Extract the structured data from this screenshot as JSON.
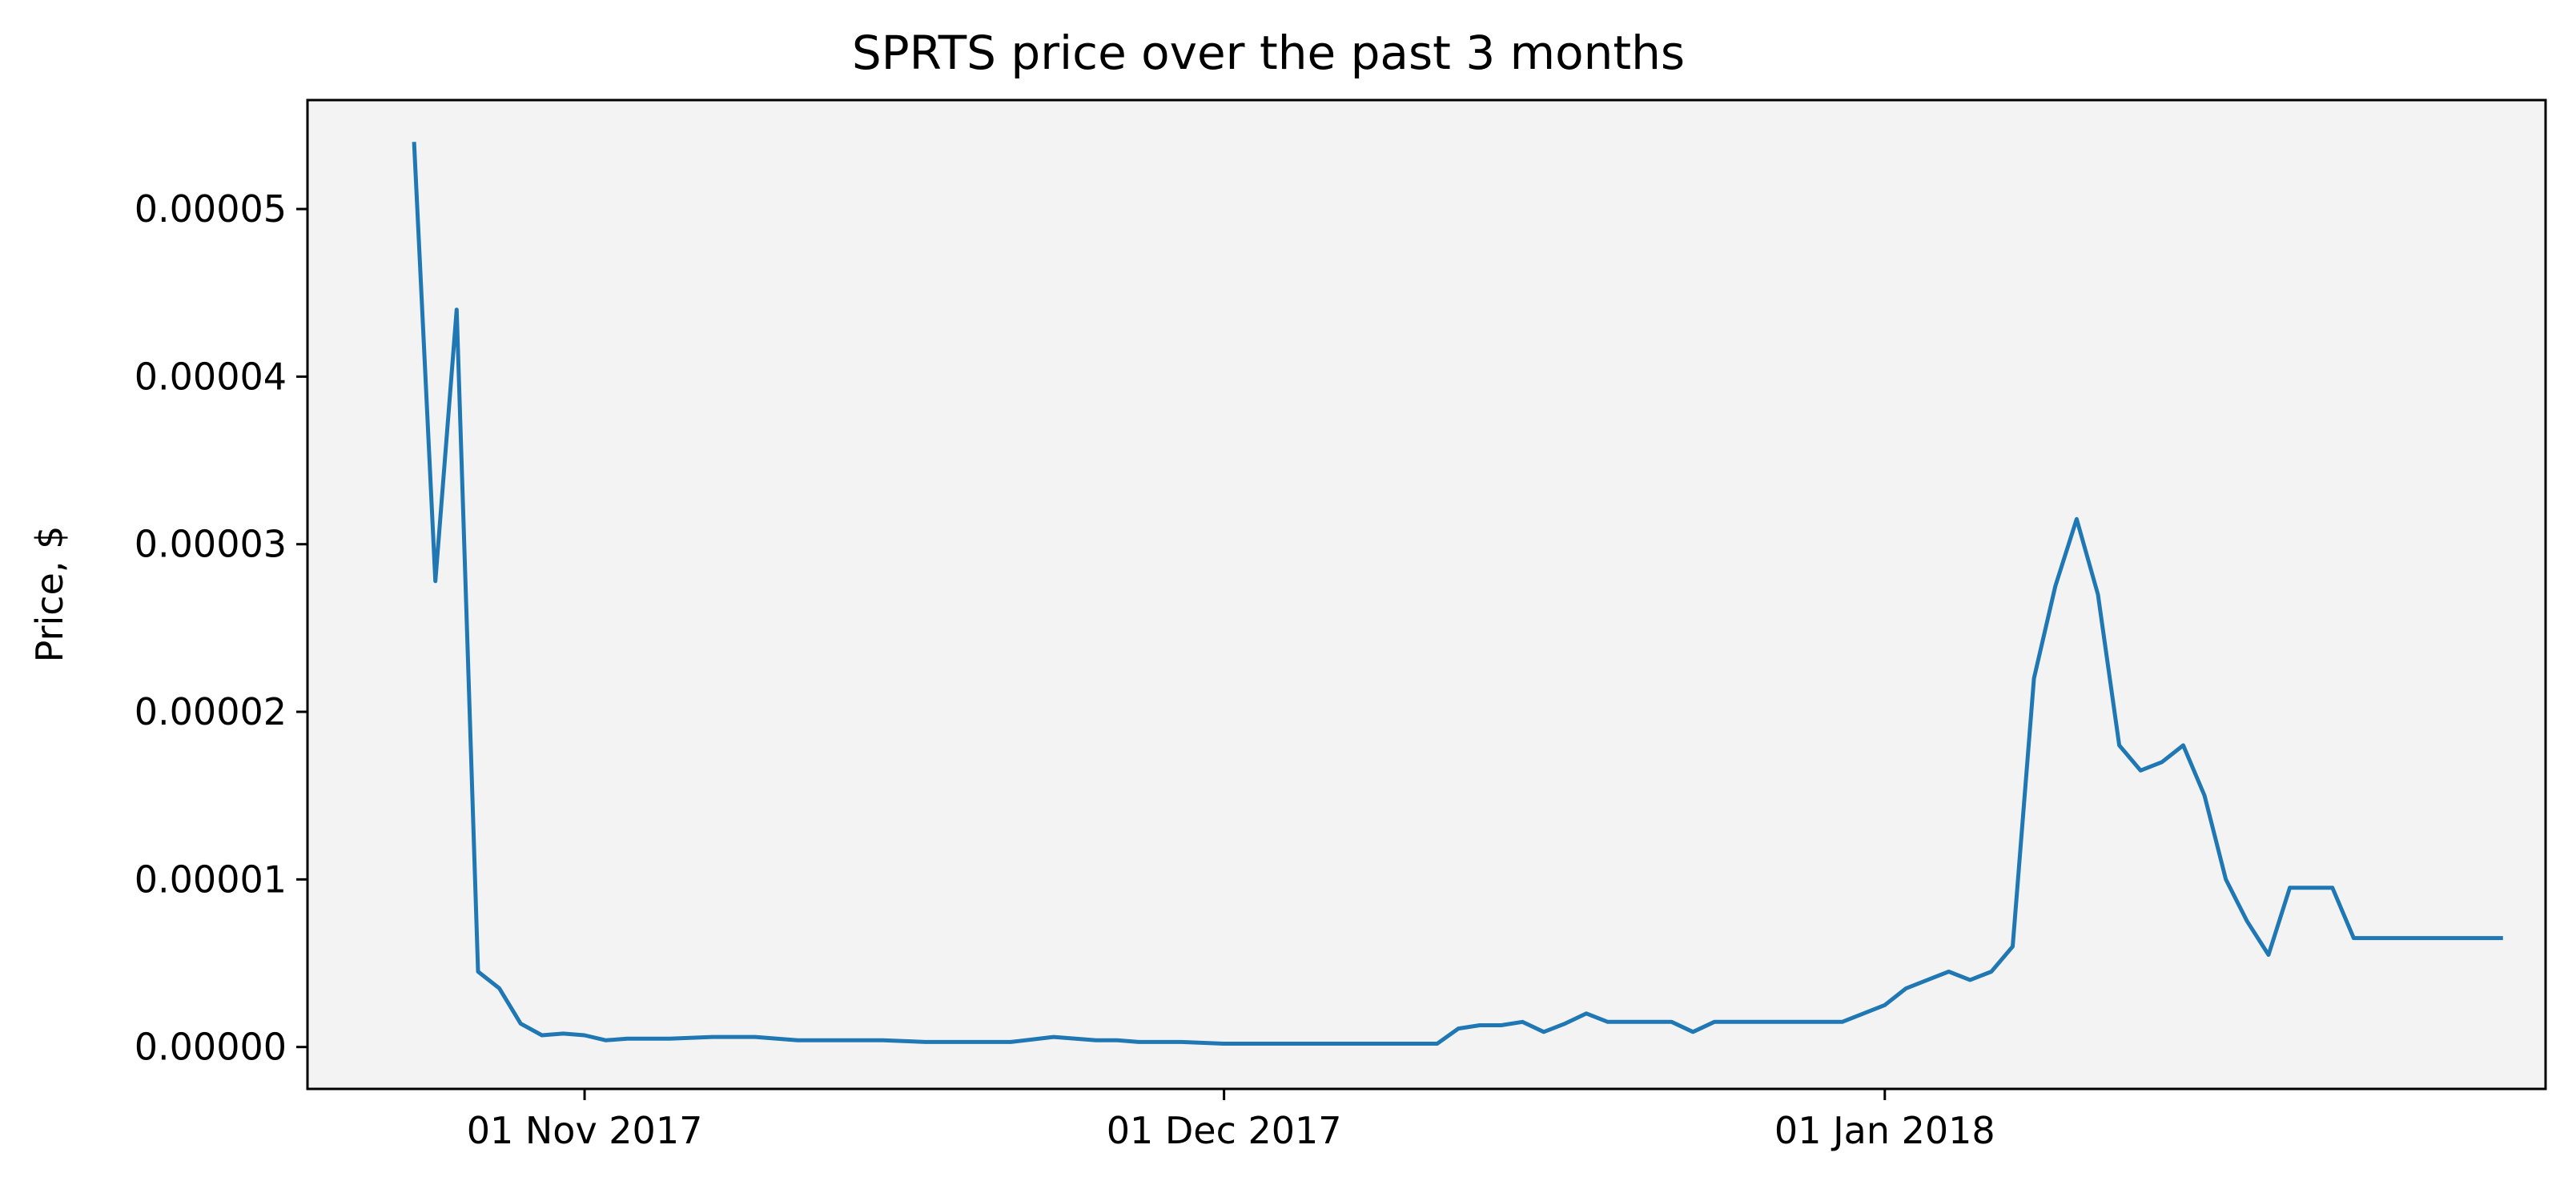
{
  "chart_data": {
    "type": "line",
    "title": "SPRTS price over the past 3 months",
    "xlabel": "",
    "ylabel": "Price, $",
    "grid": false,
    "legend": "none",
    "colors": {
      "background": "#f3f3f3",
      "line": "#1f77b4",
      "axes": "#000000"
    },
    "xlim": [
      "2017-10-19",
      "2018-02-01"
    ],
    "ylim": [
      -2.5e-06,
      5.65e-05
    ],
    "x_ticks": [
      {
        "date": "2017-11-01",
        "label": "01 Nov 2017"
      },
      {
        "date": "2017-12-01",
        "label": "01 Dec 2017"
      },
      {
        "date": "2018-01-01",
        "label": "01 Jan 2018"
      }
    ],
    "y_ticks": [
      {
        "value": 0.0,
        "label": "0.00000"
      },
      {
        "value": 1e-05,
        "label": "0.00001"
      },
      {
        "value": 2e-05,
        "label": "0.00002"
      },
      {
        "value": 3e-05,
        "label": "0.00003"
      },
      {
        "value": 4e-05,
        "label": "0.00004"
      },
      {
        "value": 5e-05,
        "label": "0.00005"
      }
    ],
    "series": [
      {
        "x": [
          "2017-10-24",
          "2017-10-25",
          "2017-10-26",
          "2017-10-27",
          "2017-10-28",
          "2017-10-29",
          "2017-10-30",
          "2017-10-31",
          "2017-11-01",
          "2017-11-02",
          "2017-11-03",
          "2017-11-05",
          "2017-11-07",
          "2017-11-09",
          "2017-11-11",
          "2017-11-13",
          "2017-11-15",
          "2017-11-17",
          "2017-11-19",
          "2017-11-21",
          "2017-11-23",
          "2017-11-25",
          "2017-11-26",
          "2017-11-27",
          "2017-11-29",
          "2017-12-01",
          "2017-12-03",
          "2017-12-05",
          "2017-12-07",
          "2017-12-09",
          "2017-12-11",
          "2017-12-12",
          "2017-12-13",
          "2017-12-14",
          "2017-12-15",
          "2017-12-16",
          "2017-12-17",
          "2017-12-18",
          "2017-12-19",
          "2017-12-20",
          "2017-12-21",
          "2017-12-22",
          "2017-12-23",
          "2017-12-24",
          "2017-12-25",
          "2017-12-26",
          "2017-12-27",
          "2017-12-28",
          "2017-12-29",
          "2017-12-30",
          "2017-12-31",
          "2018-01-01",
          "2018-01-02",
          "2018-01-03",
          "2018-01-04",
          "2018-01-05",
          "2018-01-06",
          "2018-01-07",
          "2018-01-08",
          "2018-01-09",
          "2018-01-10",
          "2018-01-11",
          "2018-01-12",
          "2018-01-13",
          "2018-01-14",
          "2018-01-15",
          "2018-01-16",
          "2018-01-17",
          "2018-01-18",
          "2018-01-19",
          "2018-01-20",
          "2018-01-21",
          "2018-01-22",
          "2018-01-23",
          "2018-01-24",
          "2018-01-25",
          "2018-01-26",
          "2018-01-27",
          "2018-01-28",
          "2018-01-29",
          "2018-01-30"
        ],
        "y": [
          5.4e-05,
          2.78e-05,
          4.4e-05,
          4.5e-06,
          3.5e-06,
          1.4e-06,
          7e-07,
          8e-07,
          7e-07,
          4e-07,
          5e-07,
          5e-07,
          6e-07,
          6e-07,
          4e-07,
          4e-07,
          4e-07,
          3e-07,
          3e-07,
          3e-07,
          6e-07,
          4e-07,
          4e-07,
          3e-07,
          3e-07,
          2e-07,
          2e-07,
          2e-07,
          2e-07,
          2e-07,
          2e-07,
          1.1e-06,
          1.3e-06,
          1.3e-06,
          1.5e-06,
          9e-07,
          1.4e-06,
          2e-06,
          1.5e-06,
          1.5e-06,
          1.5e-06,
          1.5e-06,
          9e-07,
          1.5e-06,
          1.5e-06,
          1.5e-06,
          1.5e-06,
          1.5e-06,
          1.5e-06,
          1.5e-06,
          2e-06,
          2.5e-06,
          3.5e-06,
          4e-06,
          4.5e-06,
          4e-06,
          4.5e-06,
          6e-06,
          2.2e-05,
          2.75e-05,
          3.15e-05,
          2.7e-05,
          1.8e-05,
          1.65e-05,
          1.7e-05,
          1.8e-05,
          1.5e-05,
          1e-05,
          7.5e-06,
          5.5e-06,
          9.5e-06,
          9.5e-06,
          9.5e-06,
          6.5e-06,
          6.5e-06,
          6.5e-06,
          6.5e-06,
          6.5e-06,
          6.5e-06,
          6.5e-06,
          6.5e-06
        ]
      }
    ]
  }
}
